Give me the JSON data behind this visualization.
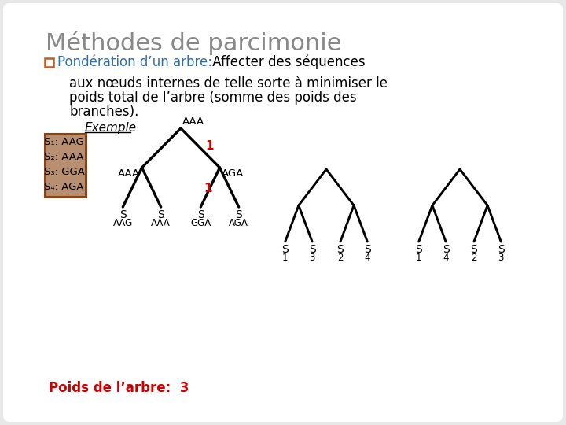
{
  "title": "Méthodes de parcimonie",
  "title_color": "#888888",
  "bg_color": "#e8e8e8",
  "card_color": "#ffffff",
  "bullet_label": "Pondération d’un arbre:",
  "bullet_color": "#2e6fad",
  "bullet_box_color": "#c05a1f",
  "body_line1": " Affecter des séquences",
  "body_line2": "aux nœuds internes de telle sorte à minimiser le",
  "body_line3": "poids total de l’arbre (somme des poids des",
  "body_line4": "branches).",
  "example_word": "Exemple",
  "seq_labels": [
    "S₁: AAG",
    "S₂: AAA",
    "S₃: GGA",
    "S₄: AGA"
  ],
  "tree1_root_label": "AAA",
  "tree1_left_label": "AAA",
  "tree1_right_label": "AGA",
  "tree1_leaf_seqs": [
    "AAG",
    "AAA",
    "GGA",
    "AGA"
  ],
  "tree2_leaf_nums": [
    "1",
    "3",
    "2",
    "4"
  ],
  "tree3_leaf_nums": [
    "1",
    "4",
    "2",
    "3"
  ],
  "red_color": "#cc0000",
  "poids_text": "Poids de l’arbre:  3",
  "poids_color": "#cc0000",
  "box_stripe_color": "#8b4513"
}
